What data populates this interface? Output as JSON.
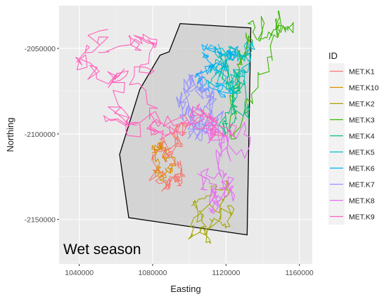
{
  "chart_data": {
    "type": "line",
    "xlabel": "Easting",
    "ylabel": "Northing",
    "xlim": [
      1029000,
      1167000
    ],
    "ylim": [
      -2176000,
      -2025000
    ],
    "x_ticks": [
      1040000,
      1080000,
      1120000,
      1160000
    ],
    "x_tick_labels": [
      "1040000",
      "1080000",
      "1120000",
      "1160000"
    ],
    "y_ticks": [
      -2050000,
      -2100000,
      -2150000
    ],
    "y_tick_labels": [
      "-2050000",
      "-2100000",
      "-2150000"
    ],
    "grid": true,
    "legend": {
      "title": "ID",
      "position": "right"
    },
    "annotation": "Wet season",
    "hull": {
      "points": [
        [
          1095000,
          -2035500
        ],
        [
          1133500,
          -2038000
        ],
        [
          1131500,
          -2159000
        ],
        [
          1067000,
          -2149000
        ],
        [
          1062000,
          -2112000
        ],
        [
          1073000,
          -2074000
        ],
        [
          1084000,
          -2054000
        ],
        [
          1089000,
          -2052000
        ],
        [
          1095000,
          -2035500
        ]
      ],
      "fill": "#cccccc",
      "stroke": "#000000"
    },
    "series": [
      {
        "name": "MET.K1",
        "color": "#F8766D",
        "center": [
          1091000,
          -2113000
        ],
        "spread": [
          12000,
          16000
        ],
        "steps": 140,
        "anchors": [
          [
            1084000,
            -2108000
          ],
          [
            1096000,
            -2122000
          ],
          [
            1090000,
            -2135000
          ],
          [
            1081000,
            -2118000
          ],
          [
            1097000,
            -2100000
          ]
        ]
      },
      {
        "name": "MET.K10",
        "color": "#D89000",
        "center": [
          1086000,
          -2112000
        ],
        "spread": [
          7000,
          8000
        ],
        "steps": 90,
        "anchors": [
          [
            1083000,
            -2105000
          ],
          [
            1090000,
            -2118000
          ],
          [
            1086000,
            -2125000
          ],
          [
            1081000,
            -2112000
          ]
        ]
      },
      {
        "name": "MET.K2",
        "color": "#A3A500",
        "center": [
          1116000,
          -2140000
        ],
        "spread": [
          10000,
          14000
        ],
        "steps": 90,
        "anchors": [
          [
            1100000,
            -2142000
          ],
          [
            1111000,
            -2158000
          ],
          [
            1125000,
            -2145000
          ],
          [
            1098000,
            -2160000
          ],
          [
            1122000,
            -2130000
          ]
        ]
      },
      {
        "name": "MET.K3",
        "color": "#39B600",
        "center": [
          1125000,
          -2070000
        ],
        "spread": [
          8000,
          22000
        ],
        "steps": 110,
        "anchors": [
          [
            1133000,
            -2040000
          ],
          [
            1145000,
            -2036000
          ],
          [
            1157000,
            -2036000
          ],
          [
            1124000,
            -2095000
          ],
          [
            1127000,
            -2058000
          ]
        ]
      },
      {
        "name": "MET.K4",
        "color": "#00BF7D",
        "center": [
          1124000,
          -2082000
        ],
        "spread": [
          9000,
          20000
        ],
        "steps": 100,
        "anchors": [
          [
            1120000,
            -2060000
          ],
          [
            1130000,
            -2085000
          ],
          [
            1118000,
            -2100000
          ],
          [
            1127000,
            -2070000
          ]
        ]
      },
      {
        "name": "MET.K5",
        "color": "#00BFC4",
        "center": [
          1122000,
          -2063000
        ],
        "spread": [
          11000,
          16000
        ],
        "steps": 130,
        "anchors": [
          [
            1117000,
            -2050000
          ],
          [
            1130000,
            -2055000
          ],
          [
            1123000,
            -2078000
          ],
          [
            1133000,
            -2045000
          ],
          [
            1113000,
            -2068000
          ]
        ]
      },
      {
        "name": "MET.K6",
        "color": "#00B0F6",
        "center": [
          1113000,
          -2062000
        ],
        "spread": [
          12000,
          12000
        ],
        "steps": 120,
        "anchors": [
          [
            1108000,
            -2048000
          ],
          [
            1124000,
            -2052000
          ],
          [
            1101000,
            -2070000
          ],
          [
            1120000,
            -2075000
          ]
        ]
      },
      {
        "name": "MET.K7",
        "color": "#9590FF",
        "center": [
          1106000,
          -2085000
        ],
        "spread": [
          13000,
          22000
        ],
        "steps": 140,
        "anchors": [
          [
            1098000,
            -2065000
          ],
          [
            1113000,
            -2082000
          ],
          [
            1104000,
            -2102000
          ],
          [
            1094000,
            -2078000
          ],
          [
            1117000,
            -2098000
          ]
        ]
      },
      {
        "name": "MET.K8",
        "color": "#E76BF3",
        "center": [
          1115000,
          -2115000
        ],
        "spread": [
          11000,
          24000
        ],
        "steps": 130,
        "anchors": [
          [
            1110000,
            -2100000
          ],
          [
            1123000,
            -2128000
          ],
          [
            1115000,
            -2148000
          ],
          [
            1107000,
            -2120000
          ],
          [
            1130000,
            -2105000
          ]
        ]
      },
      {
        "name": "MET.K9",
        "color": "#FF62BC",
        "center": [
          1080000,
          -2078000
        ],
        "spread": [
          22000,
          20000
        ],
        "steps": 200,
        "anchors": [
          [
            1050000,
            -2045000
          ],
          [
            1043000,
            -2060000
          ],
          [
            1065000,
            -2069000
          ],
          [
            1058000,
            -2098000
          ],
          [
            1076000,
            -2090000
          ],
          [
            1095000,
            -2094000
          ],
          [
            1106000,
            -2088000
          ],
          [
            1120000,
            -2100000
          ],
          [
            1085000,
            -2105000
          ],
          [
            1068000,
            -2056000
          ],
          [
            1072000,
            -2042000
          ]
        ]
      }
    ]
  }
}
